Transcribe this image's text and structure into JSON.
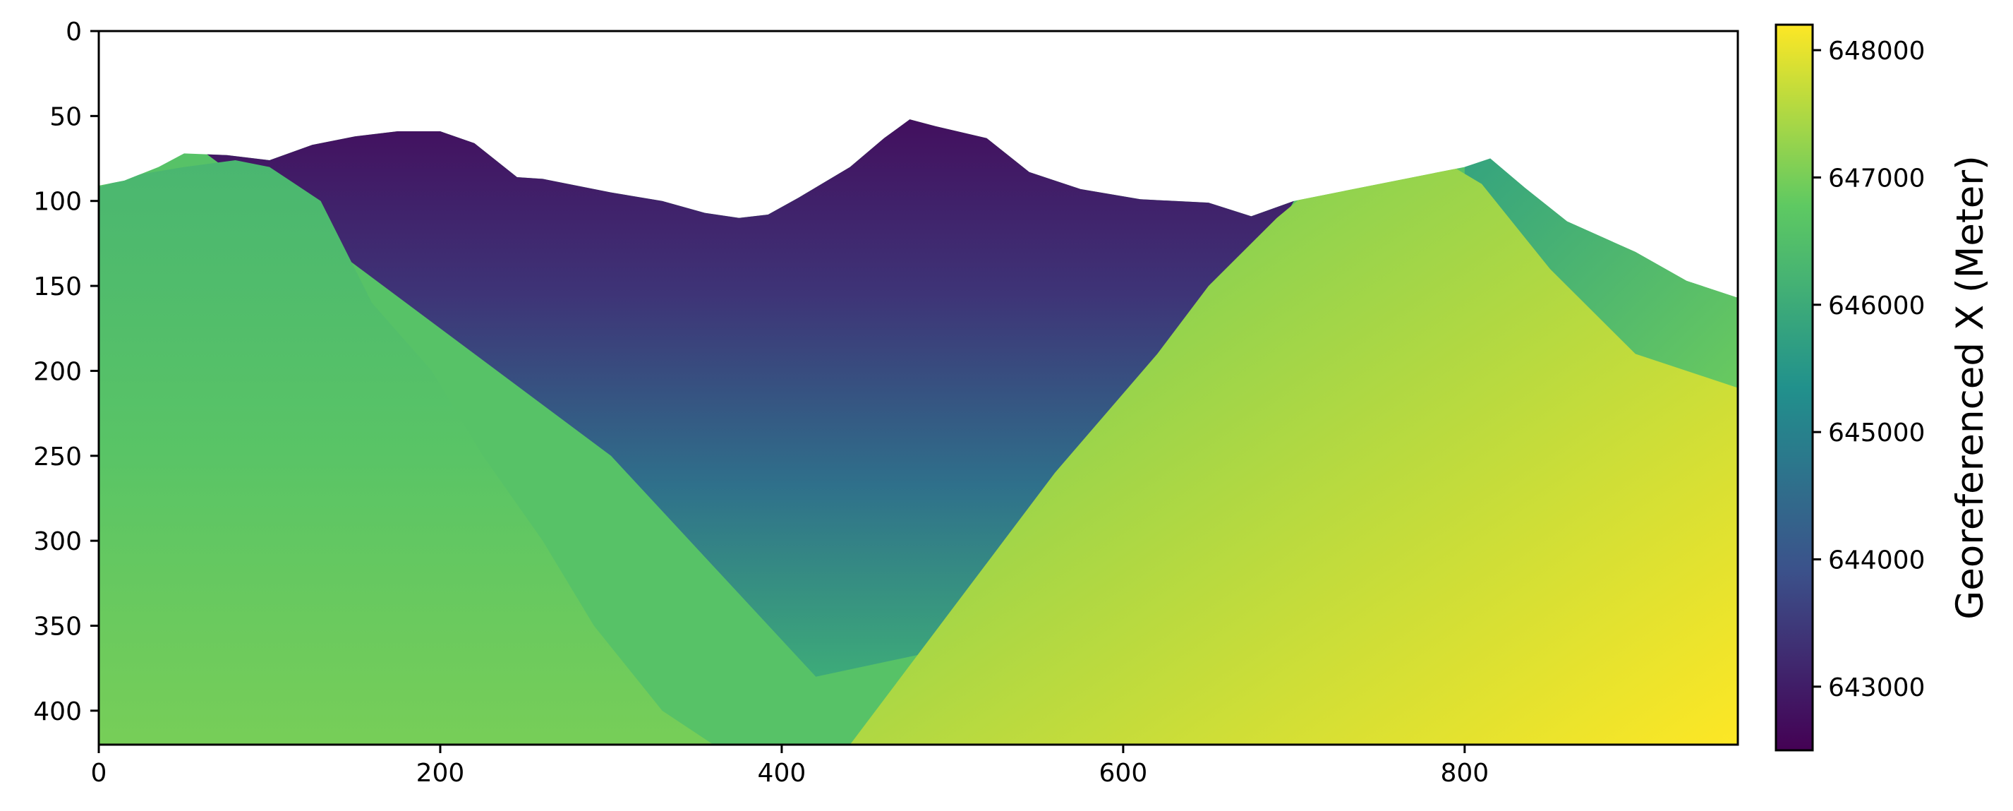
{
  "chart_data": {
    "type": "heatmap",
    "title": "",
    "xlabel": "",
    "ylabel": "",
    "colormap": "viridis",
    "colors": [
      "#440154",
      "#3b528b",
      "#21918c",
      "#5ec962",
      "#fde725"
    ],
    "background": "#ffffff",
    "image_shape": [
      420,
      960
    ],
    "xlim": [
      0,
      960
    ],
    "ylim": [
      420,
      0
    ],
    "x_ticks": [
      0,
      200,
      400,
      600,
      800
    ],
    "x_tick_labels": [
      "0",
      "200",
      "400",
      "600",
      "800"
    ],
    "y_ticks": [
      0,
      50,
      100,
      150,
      200,
      250,
      300,
      350,
      400
    ],
    "y_tick_labels": [
      "0",
      "50",
      "100",
      "150",
      "200",
      "250",
      "300",
      "350",
      "400"
    ],
    "colorbar": {
      "label": "Georeferenced X (Meter)",
      "range": [
        642500,
        648200
      ],
      "ticks": [
        643000,
        644000,
        645000,
        646000,
        647000,
        648000
      ],
      "tick_labels": [
        "643000",
        "644000",
        "645000",
        "646000",
        "647000",
        "648000"
      ],
      "placement": "right"
    },
    "top_boundary": {
      "description": "topmost data row per column; above is empty (white)",
      "x": [
        0,
        15,
        35,
        50,
        75,
        100,
        125,
        150,
        175,
        200,
        220,
        245,
        260,
        300,
        330,
        355,
        375,
        392,
        410,
        440,
        460,
        475,
        490,
        520,
        545,
        575,
        610,
        650,
        675,
        700,
        800,
        815,
        835,
        860,
        900,
        930,
        960
      ],
      "y": [
        91,
        88,
        80,
        72,
        73,
        76,
        67,
        62,
        59,
        59,
        66,
        86,
        87,
        95,
        100,
        107,
        110,
        108,
        98,
        80,
        63,
        52,
        56,
        63,
        83,
        93,
        99,
        101,
        109,
        100,
        80,
        75,
        92,
        112,
        130,
        147,
        157
      ]
    },
    "layers": [
      {
        "name": "left-green-hill",
        "value_range": [
          646300,
          647000
        ],
        "top_x": [
          0,
          20,
          50,
          80,
          100,
          130,
          160,
          195,
          225,
          260,
          290,
          330,
          360
        ],
        "top_y": [
          92,
          85,
          80,
          76,
          80,
          100,
          160,
          200,
          250,
          300,
          350,
          400,
          420
        ]
      },
      {
        "name": "central-valley",
        "value_range": [
          642700,
          646000
        ],
        "top_x": [
          100,
          200,
          300,
          400,
          480,
          560,
          650
        ],
        "top_y": [
          80,
          60,
          95,
          100,
          52,
          90,
          110
        ]
      },
      {
        "name": "right-yellow-hill",
        "value_range": [
          646800,
          648200
        ],
        "top_x": [
          440,
          500,
          560,
          620,
          650,
          690,
          720,
          750,
          780,
          810,
          850,
          900,
          960
        ],
        "top_y": [
          420,
          340,
          260,
          190,
          150,
          110,
          85,
          70,
          72,
          90,
          140,
          190,
          210
        ]
      },
      {
        "name": "right-slope-teal-band",
        "value_range": [
          645800,
          646900
        ],
        "top_x": [
          800,
          820,
          845,
          880,
          930,
          960
        ],
        "top_y": [
          78,
          77,
          100,
          120,
          145,
          157
        ]
      }
    ]
  }
}
